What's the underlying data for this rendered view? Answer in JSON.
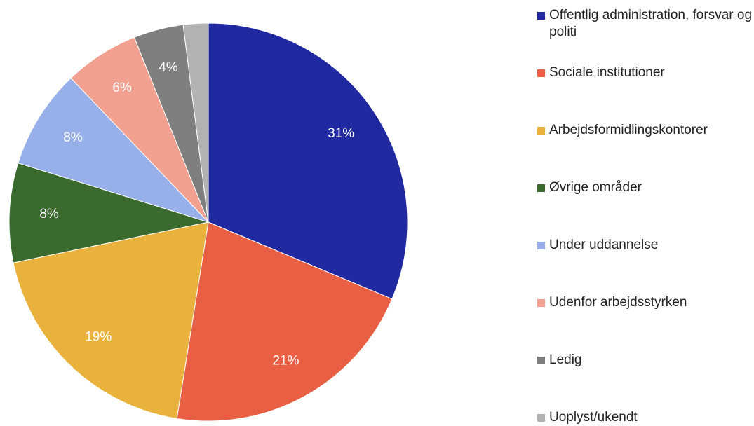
{
  "chart_data": {
    "type": "pie",
    "categories": [
      "Offentlig administration, forsvar og politi",
      "Sociale institutioner",
      "Arbejdsformidlingskontorer",
      "Øvrige områder",
      "Under uddannelse",
      "Udenfor arbejdsstyrken",
      "Ledig",
      "Uoplyst/ukendt"
    ],
    "values": [
      31,
      21,
      19,
      8,
      8,
      6,
      4,
      2
    ],
    "value_labels": [
      "31%",
      "21%",
      "19%",
      "8%",
      "8%",
      "6%",
      "4%",
      null
    ],
    "colors": [
      "#2029a0",
      "#e85f43",
      "#e9b23c",
      "#3b6a2e",
      "#97b0ea",
      "#f2a190",
      "#7f7f7f",
      "#b2b2b2"
    ]
  }
}
